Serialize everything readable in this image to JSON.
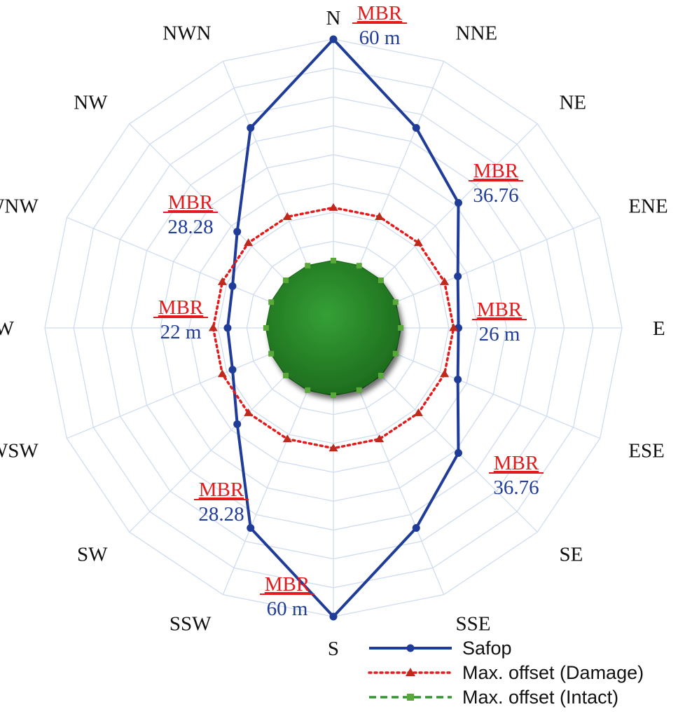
{
  "chart_data": {
    "type": "radar",
    "categories": [
      "N",
      "NNE",
      "NE",
      "ENE",
      "E",
      "ESE",
      "SE",
      "SSE",
      "S",
      "SSW",
      "SW",
      "WSW",
      "W",
      "WNW",
      "NW",
      "NWN"
    ],
    "rlim": [
      0,
      60
    ],
    "grid": true,
    "legend_position": "bottom-right",
    "series": [
      {
        "name": "Safop",
        "color": "#1f3c98",
        "marker": "circle",
        "line_style": "solid",
        "values": [
          60,
          45,
          36.76,
          28,
          26,
          28,
          36.76,
          45,
          60,
          45,
          28.28,
          22.7,
          22,
          22.7,
          28.28,
          45
        ]
      },
      {
        "name": "Max. offset (Damage)",
        "color": "#e41a1c",
        "marker": "triangle",
        "line_style": "dotted",
        "values": [
          25,
          25,
          25,
          25,
          25,
          25,
          25,
          25,
          25,
          25,
          25,
          25,
          25,
          25,
          25,
          25
        ]
      },
      {
        "name": "Max. offset (Intact)",
        "color": "#2e9a2e",
        "marker": "square",
        "line_style": "dashed",
        "values": [
          14,
          14,
          14,
          14,
          14,
          14,
          14,
          14,
          14,
          14,
          14,
          14,
          14,
          14,
          14,
          14
        ]
      }
    ],
    "annotations": [
      {
        "direction": "N",
        "title": "MBR",
        "value": "60 m"
      },
      {
        "direction": "NE",
        "title": "MBR",
        "value": "36.76"
      },
      {
        "direction": "E",
        "title": "MBR",
        "value": "26 m"
      },
      {
        "direction": "SE",
        "title": "MBR",
        "value": "36.76"
      },
      {
        "direction": "S",
        "title": "MBR",
        "value": "60 m"
      },
      {
        "direction": "SW",
        "title": "MBR",
        "value": "28.28"
      },
      {
        "direction": "W",
        "title": "MBR",
        "value": "22 m"
      },
      {
        "direction": "NW",
        "title": "MBR",
        "value": "28.28"
      }
    ],
    "colors": {
      "grid": "#cfdcef",
      "filled_area": "#2a8a2a"
    }
  }
}
